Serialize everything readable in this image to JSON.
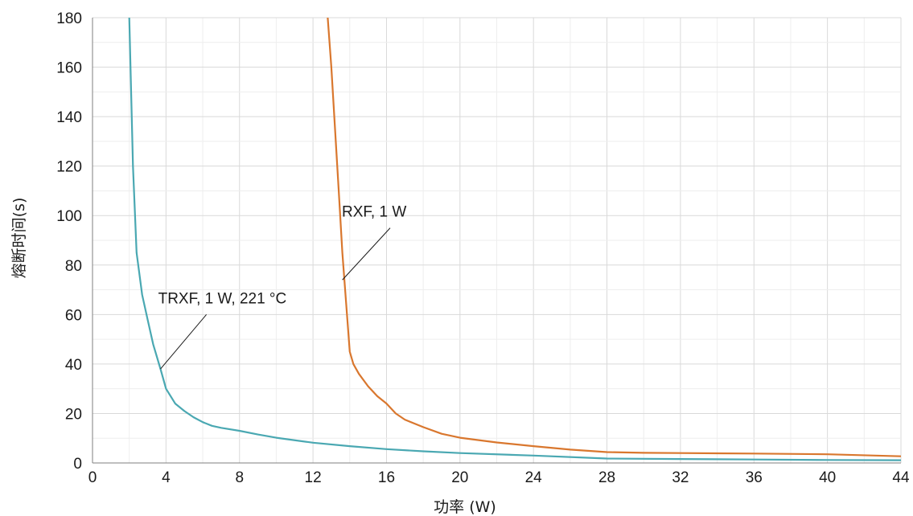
{
  "chart_data": {
    "type": "line",
    "title": "",
    "xlabel": "功率 (W)",
    "ylabel": "熔断时间(s)",
    "xlim": [
      0,
      44
    ],
    "ylim": [
      0,
      180
    ],
    "x_ticks": [
      0,
      4,
      8,
      12,
      16,
      20,
      24,
      28,
      32,
      36,
      40,
      44
    ],
    "y_ticks": [
      0,
      20,
      40,
      60,
      80,
      100,
      120,
      140,
      160,
      180
    ],
    "grid": true,
    "legend": "none",
    "series": [
      {
        "name": "TRXF, 1 W,  221 °C",
        "color": "#4aa8b2",
        "points": [
          [
            2.0,
            180
          ],
          [
            2.1,
            150
          ],
          [
            2.2,
            120
          ],
          [
            2.4,
            85
          ],
          [
            2.7,
            68
          ],
          [
            3.0,
            58
          ],
          [
            3.3,
            48
          ],
          [
            3.7,
            38
          ],
          [
            4.0,
            30
          ],
          [
            4.5,
            24
          ],
          [
            5.0,
            21
          ],
          [
            5.5,
            18.5
          ],
          [
            6.0,
            16.5
          ],
          [
            6.5,
            15
          ],
          [
            7.0,
            14.2
          ],
          [
            8.0,
            13
          ],
          [
            9.0,
            11.5
          ],
          [
            10.0,
            10.2
          ],
          [
            12.0,
            8.2
          ],
          [
            14.0,
            6.8
          ],
          [
            16.0,
            5.6
          ],
          [
            18.0,
            4.7
          ],
          [
            20.0,
            4.0
          ],
          [
            24.0,
            3.0
          ],
          [
            28.0,
            1.8
          ],
          [
            32.0,
            1.6
          ],
          [
            36.0,
            1.4
          ],
          [
            40.0,
            1.2
          ],
          [
            44.0,
            1.1
          ]
        ]
      },
      {
        "name": "RXF, 1 W",
        "color": "#d9772e",
        "points": [
          [
            12.8,
            180
          ],
          [
            13.0,
            160
          ],
          [
            13.2,
            135
          ],
          [
            13.4,
            110
          ],
          [
            13.6,
            85
          ],
          [
            13.8,
            65
          ],
          [
            13.9,
            55
          ],
          [
            14.0,
            45
          ],
          [
            14.2,
            40
          ],
          [
            14.5,
            36
          ],
          [
            15.0,
            31
          ],
          [
            15.5,
            27
          ],
          [
            16.0,
            24
          ],
          [
            16.5,
            20
          ],
          [
            17.0,
            17.5
          ],
          [
            18.0,
            14.5
          ],
          [
            19.0,
            11.8
          ],
          [
            20.0,
            10.2
          ],
          [
            22.0,
            8.3
          ],
          [
            24.0,
            6.8
          ],
          [
            26.0,
            5.4
          ],
          [
            28.0,
            4.4
          ],
          [
            30.0,
            4.1
          ],
          [
            32.0,
            4.0
          ],
          [
            36.0,
            3.8
          ],
          [
            40.0,
            3.5
          ],
          [
            44.0,
            2.7
          ]
        ]
      }
    ],
    "annotations": [
      {
        "text": "RXF, 1 W",
        "series": 1,
        "target": [
          13.6,
          74
        ],
        "label_at": [
          16.2,
          95
        ]
      },
      {
        "text": "TRXF, 1 W,  221 °C",
        "series": 0,
        "target": [
          3.7,
          38
        ],
        "label_at": [
          6.2,
          60
        ]
      }
    ]
  }
}
